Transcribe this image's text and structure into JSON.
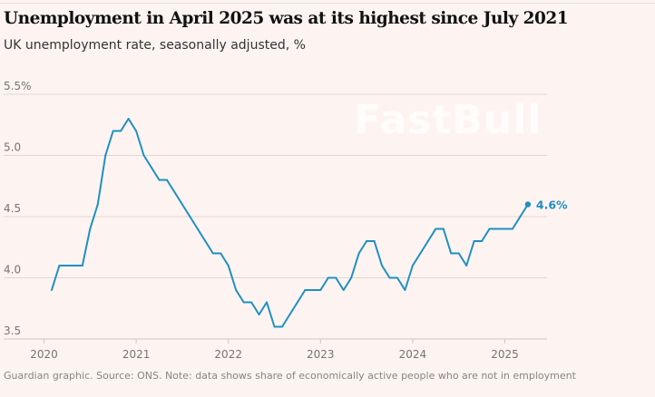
{
  "title": "Unemployment in April 2025 was at its highest since July 2021",
  "subtitle": "UK unemployment rate, seasonally adjusted, %",
  "source": "Guardian graphic. Source: ONS. Note: data shows share of economically active people who are not in employment",
  "chart_data": {
    "type": "line",
    "title": "Unemployment in April 2025 was at its highest since July 2021",
    "ylabel": "UK unemployment rate, seasonally adjusted, %",
    "ylim": [
      3.5,
      5.5
    ],
    "yticks": [
      5.5,
      5.0,
      4.5,
      4.0,
      3.5
    ],
    "ytick_labels": [
      "5.5%",
      "5.0",
      "4.5",
      "4.0",
      "3.5"
    ],
    "xticks": [
      2020,
      2021,
      2022,
      2023,
      2024,
      2025
    ],
    "xtick_labels": [
      "2020",
      "2021",
      "2022",
      "2023",
      "2024",
      "2025"
    ],
    "grid": true,
    "color": "#1f8fc4",
    "start": "2020-02",
    "frequency": "monthly",
    "x": [
      "2020-02",
      "2020-03",
      "2020-04",
      "2020-05",
      "2020-06",
      "2020-07",
      "2020-08",
      "2020-09",
      "2020-10",
      "2020-11",
      "2020-12",
      "2021-01",
      "2021-02",
      "2021-03",
      "2021-04",
      "2021-05",
      "2021-06",
      "2021-07",
      "2021-08",
      "2021-09",
      "2021-10",
      "2021-11",
      "2021-12",
      "2022-01",
      "2022-02",
      "2022-03",
      "2022-04",
      "2022-05",
      "2022-06",
      "2022-07",
      "2022-08",
      "2022-09",
      "2022-10",
      "2022-11",
      "2022-12",
      "2023-01",
      "2023-02",
      "2023-03",
      "2023-04",
      "2023-05",
      "2023-06",
      "2023-07",
      "2023-08",
      "2023-09",
      "2023-10",
      "2023-11",
      "2023-12",
      "2024-01",
      "2024-02",
      "2024-03",
      "2024-04",
      "2024-05",
      "2024-06",
      "2024-07",
      "2024-08",
      "2024-09",
      "2024-10",
      "2024-11",
      "2024-12",
      "2025-01",
      "2025-02",
      "2025-03",
      "2025-04"
    ],
    "values": [
      3.9,
      4.1,
      4.1,
      4.1,
      4.1,
      4.4,
      4.6,
      5.0,
      5.2,
      5.2,
      5.3,
      5.2,
      5.0,
      4.9,
      4.8,
      4.8,
      4.7,
      4.6,
      4.5,
      4.4,
      4.3,
      4.2,
      4.2,
      4.1,
      3.9,
      3.8,
      3.8,
      3.7,
      3.8,
      3.6,
      3.6,
      3.7,
      3.8,
      3.9,
      3.9,
      3.9,
      4.0,
      4.0,
      3.9,
      4.0,
      4.2,
      4.3,
      4.3,
      4.1,
      4.0,
      4.0,
      3.9,
      4.1,
      4.2,
      4.3,
      4.4,
      4.4,
      4.2,
      4.2,
      4.1,
      4.3,
      4.3,
      4.4,
      4.4,
      4.4,
      4.4,
      4.5,
      4.6
    ],
    "annotation": "4.6%"
  }
}
